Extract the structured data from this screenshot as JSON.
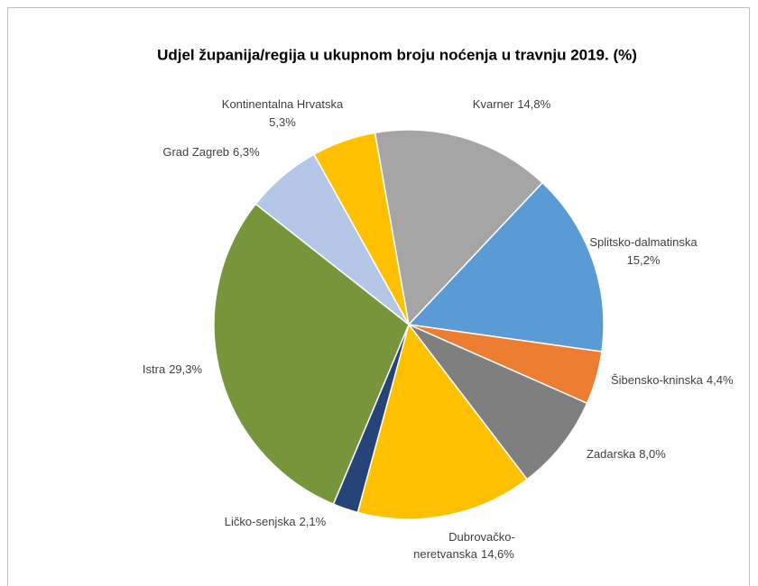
{
  "chart_data": {
    "type": "pie",
    "title": "Udjel županija/regija u ukupnom broju noćenja u travnju 2019. (%)",
    "categories": [
      "Kvarner",
      "Splitsko-dalmatinska",
      "Šibensko-kninska",
      "Zadarska",
      "Dubrovačko-neretvanska",
      "Ličko-senjska",
      "Istra",
      "Grad Zagreb",
      "Kontinentalna Hrvatska"
    ],
    "values": [
      14.8,
      15.2,
      4.4,
      8.0,
      14.6,
      2.1,
      29.3,
      6.3,
      5.3
    ],
    "value_labels": [
      "14,8%",
      "15,2%",
      "4,4%",
      "8,0%",
      "14,6%",
      "2,1%",
      "29,3%",
      "6,3%",
      "5,3%"
    ],
    "colors": [
      "#a5a5a5",
      "#5b9bd5",
      "#ed7d31",
      "#7f7f7f",
      "#ffc000",
      "#264478",
      "#77963c",
      "#b4c7e7",
      "#ffc000"
    ]
  }
}
